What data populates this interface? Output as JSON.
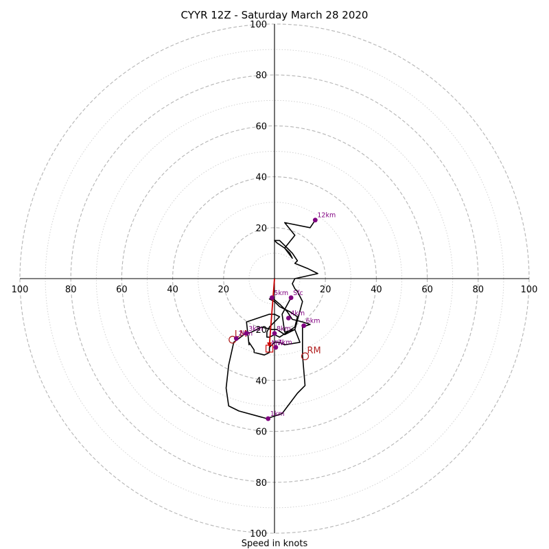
{
  "chart_data": {
    "type": "polar-hodograph",
    "title": "CYYR 12Z - Saturday March 28 2020",
    "xlabel": "Speed in knots",
    "ring_labels": [
      "20",
      "40",
      "60",
      "80",
      "100"
    ],
    "ring_values": [
      20,
      40,
      60,
      80,
      100
    ],
    "axis_range": [
      -100,
      100
    ],
    "grid": true,
    "colors": {
      "trace": "#000000",
      "height_marker": "#800080",
      "motion": "#b22222",
      "mean_wind": "#cc0000",
      "grid_major": "#b4b4b4",
      "grid_minor": "#cccccc"
    },
    "trace": [
      [
        6.5,
        -7.5
      ],
      [
        3,
        -14
      ],
      [
        4,
        -21
      ],
      [
        8,
        -20
      ],
      [
        10,
        -25
      ],
      [
        4,
        -26
      ],
      [
        2,
        -25
      ],
      [
        0,
        -25
      ],
      [
        -2,
        -27
      ],
      [
        -2,
        -29
      ],
      [
        -4,
        -30
      ],
      [
        -8,
        -29
      ],
      [
        -8,
        -28
      ],
      [
        -10,
        -25
      ],
      [
        -10,
        -26
      ],
      [
        -11,
        -17
      ],
      [
        -5,
        -15
      ],
      [
        -2,
        -14
      ],
      [
        0,
        -14
      ],
      [
        2,
        -15
      ],
      [
        1,
        -16
      ],
      [
        -2,
        -19
      ],
      [
        -3,
        -21
      ],
      [
        -3,
        -23
      ],
      [
        -2,
        -23
      ],
      [
        0,
        -22
      ],
      [
        2,
        -23
      ],
      [
        8,
        -19
      ],
      [
        9,
        -15
      ],
      [
        6,
        -13
      ],
      [
        4,
        -12
      ],
      [
        2,
        -11
      ],
      [
        0,
        -9
      ],
      [
        -2,
        -8
      ],
      [
        -1,
        -7.5
      ],
      [
        2,
        -10
      ],
      [
        5,
        -13
      ],
      [
        7,
        -16
      ],
      [
        11,
        -17
      ],
      [
        14,
        -18
      ],
      [
        11,
        -19
      ],
      [
        11,
        -24
      ],
      [
        11,
        -30
      ],
      [
        12,
        -42
      ],
      [
        9,
        -45
      ],
      [
        3,
        -53
      ],
      [
        -3,
        -55
      ],
      [
        -14,
        -52
      ],
      [
        -18,
        -50
      ],
      [
        -19,
        -43
      ],
      [
        -18,
        -34
      ],
      [
        -16,
        -25
      ],
      [
        -12,
        -22
      ],
      [
        -9,
        -21
      ],
      [
        -7,
        -20
      ],
      [
        -5,
        -19
      ],
      [
        -1,
        -20
      ],
      [
        1,
        -20
      ],
      [
        4,
        -22
      ],
      [
        8,
        -20
      ],
      [
        11,
        -9
      ],
      [
        9,
        -5
      ],
      [
        8,
        -4
      ],
      [
        7,
        -2
      ],
      [
        8,
        0
      ],
      [
        17,
        2
      ],
      [
        13,
        4
      ],
      [
        8,
        6
      ],
      [
        9,
        7
      ],
      [
        7,
        10
      ],
      [
        5,
        12
      ],
      [
        3,
        14
      ],
      [
        2,
        15
      ],
      [
        0,
        15
      ],
      [
        1,
        14
      ],
      [
        4,
        12
      ],
      [
        7,
        8
      ],
      [
        6,
        10
      ],
      [
        4,
        12
      ],
      [
        8,
        17
      ],
      [
        4,
        22
      ],
      [
        14,
        20
      ],
      [
        16,
        23
      ]
    ],
    "heights": [
      {
        "label": "Sfc",
        "u": 6.5,
        "v": -7.5
      },
      {
        "label": "1km",
        "u": -2.5,
        "v": -55
      },
      {
        "label": "2km",
        "u": -15,
        "v": -23.5
      },
      {
        "label": "3km",
        "u": -11,
        "v": -21.5
      },
      {
        "label": "4km",
        "u": 5.5,
        "v": -15.5
      },
      {
        "label": "5km",
        "u": -1,
        "v": -7.5
      },
      {
        "label": "6km",
        "u": 11.5,
        "v": -18.5
      },
      {
        "label": "7km",
        "u": 0.5,
        "v": -27
      },
      {
        "label": "8km",
        "u": 0,
        "v": -21.5
      },
      {
        "label": "12km",
        "u": 16,
        "v": 23
      }
    ],
    "storm_motion": [
      {
        "label": "LM",
        "u": -16.5,
        "v": -24
      },
      {
        "label": "RM",
        "u": 12,
        "v": -30.5
      }
    ],
    "mean_wind": {
      "label": "MW",
      "u": -2,
      "v": -27.5
    }
  }
}
